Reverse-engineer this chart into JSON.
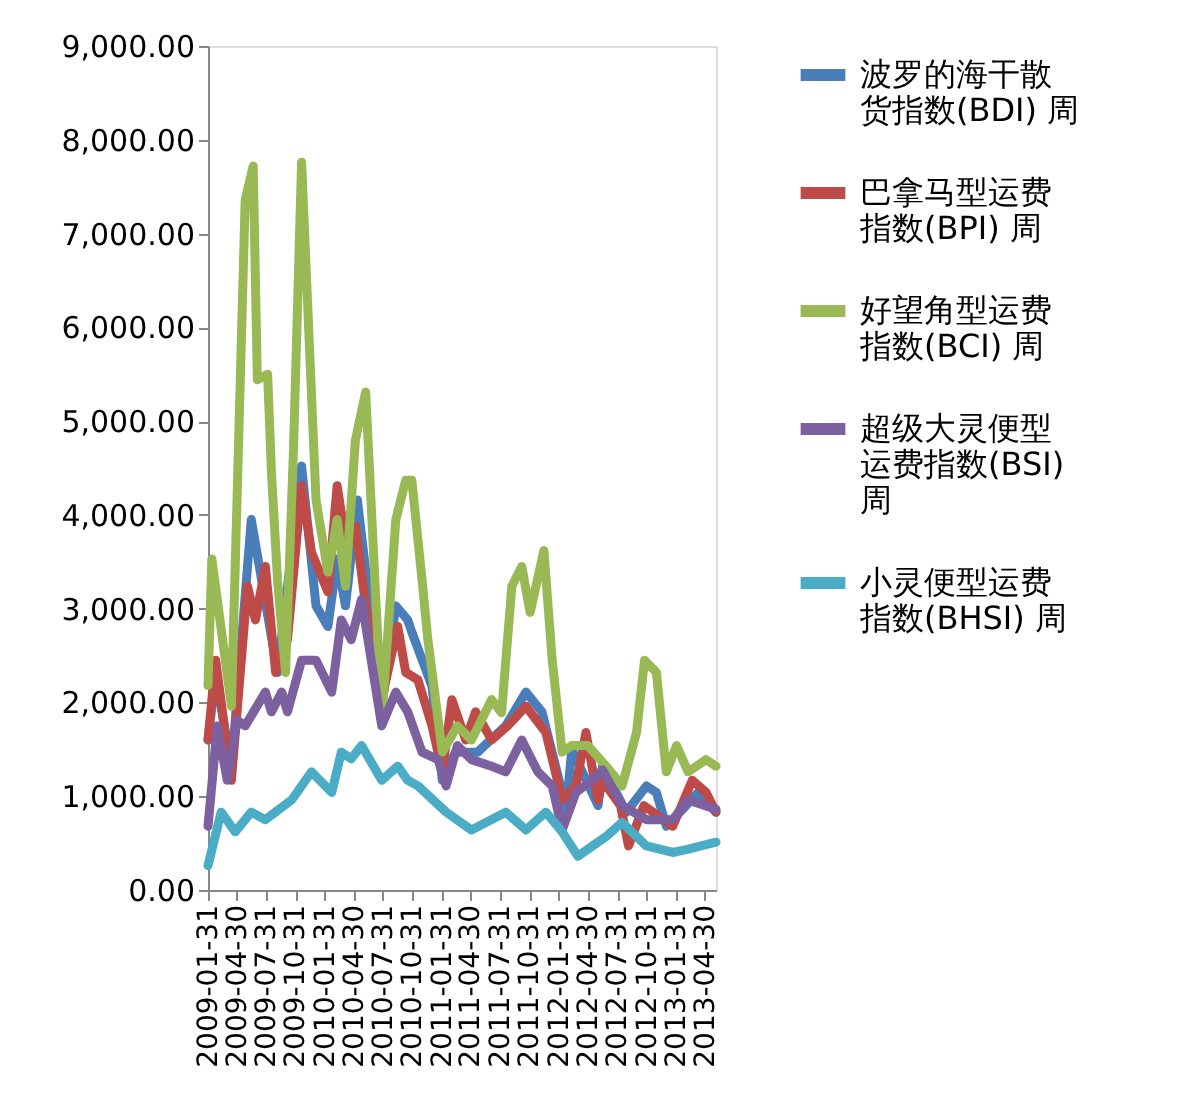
{
  "chart_data": {
    "type": "line",
    "xlim": [
      "2009-01-31",
      "2013-06-04"
    ],
    "xticks": [
      "2009-01-31",
      "2009-04-30",
      "2009-07-31",
      "2009-10-31",
      "2010-01-31",
      "2010-04-30",
      "2010-07-31",
      "2010-10-31",
      "2011-01-31",
      "2011-04-30",
      "2011-07-31",
      "2011-10-31",
      "2012-01-31",
      "2012-04-30",
      "2012-07-31",
      "2012-10-31",
      "2013-01-31",
      "2013-04-30"
    ],
    "ylim": [
      0,
      9000
    ],
    "yticks": [
      {
        "value": 0,
        "label": "0.00"
      },
      {
        "value": 1000,
        "label": "1,000.00"
      },
      {
        "value": 2000,
        "label": "2,000.00"
      },
      {
        "value": 3000,
        "label": "3,000.00"
      },
      {
        "value": 4000,
        "label": "4,000.00"
      },
      {
        "value": 5000,
        "label": "5,000.00"
      },
      {
        "value": 6000,
        "label": "6,000.00"
      },
      {
        "value": 7000,
        "label": "7,000.00"
      },
      {
        "value": 8000,
        "label": "8,000.00"
      },
      {
        "value": 9000,
        "label": "9,000.00"
      }
    ],
    "grid": false,
    "legend": "right",
    "marker": "none",
    "line_style": "solid",
    "series": [
      {
        "name": "波罗的海干散货指数(BDI) 周",
        "color": "#4a7ebb",
        "x": [
          "2009-01-31",
          "2009-02-24",
          "2009-04-14",
          "2009-06-15",
          "2009-09-05",
          "2009-11-19",
          "2010-01-03",
          "2010-02-09",
          "2010-03-10",
          "2010-04-05",
          "2010-05-12",
          "2010-07-27",
          "2010-09-09",
          "2010-10-16",
          "2010-10-29",
          "2010-12-31",
          "2011-02-01",
          "2011-03-14",
          "2011-05-22",
          "2011-08-18",
          "2011-10-20",
          "2011-12-09",
          "2012-02-10",
          "2012-02-22",
          "2012-03-11",
          "2012-06-01",
          "2012-06-15",
          "2012-08-28",
          "2012-10-30",
          "2012-11-30",
          "2012-12-31",
          "2013-03-03",
          "2013-04-09",
          "2013-06-04"
        ],
        "values": [
          1600,
          2300,
          1300,
          3950,
          2320,
          4520,
          3030,
          2810,
          3530,
          3030,
          4160,
          1960,
          3030,
          2880,
          2750,
          2170,
          1170,
          1470,
          1470,
          1750,
          2110,
          1900,
          1040,
          830,
          1500,
          900,
          1320,
          830,
          1110,
          1040,
          680,
          900,
          1040,
          830
        ]
      },
      {
        "name": "巴拿马型运费指数(BPI) 周",
        "color": "#be4b48",
        "x": [
          "2009-01-31",
          "2009-02-24",
          "2009-04-14",
          "2009-06-03",
          "2009-06-28",
          "2009-07-29",
          "2009-08-30",
          "2009-10-06",
          "2009-11-19",
          "2009-12-20",
          "2010-02-09",
          "2010-03-10",
          "2010-04-05",
          "2010-05-06",
          "2010-06-07",
          "2010-07-27",
          "2010-09-15",
          "2010-10-10",
          "2010-11-17",
          "2010-12-31",
          "2011-02-01",
          "2011-03-03",
          "2011-04-15",
          "2011-05-16",
          "2011-07-05",
          "2011-08-24",
          "2011-10-20",
          "2011-12-21",
          "2012-02-10",
          "2012-03-24",
          "2012-04-24",
          "2012-06-01",
          "2012-06-15",
          "2012-08-10",
          "2012-09-04",
          "2012-10-22",
          "2013-01-20",
          "2013-03-22",
          "2013-05-04",
          "2013-06-04"
        ],
        "values": [
          1600,
          2450,
          1170,
          3240,
          2880,
          3450,
          2320,
          2670,
          4310,
          3600,
          3180,
          4310,
          3730,
          3880,
          3030,
          2030,
          2810,
          2320,
          2240,
          1750,
          1260,
          2030,
          1600,
          1900,
          1600,
          1750,
          1960,
          1680,
          960,
          1110,
          1680,
          960,
          1170,
          900,
          470,
          900,
          680,
          1170,
          1040,
          830
        ]
      },
      {
        "name": "好望角型运费指数(BCI) 周",
        "color": "#98b954",
        "x": [
          "2009-01-31",
          "2009-02-12",
          "2009-04-14",
          "2009-05-27",
          "2009-06-21",
          "2009-07-04",
          "2009-08-05",
          "2009-08-17",
          "2009-09-05",
          "2009-09-30",
          "2009-10-25",
          "2009-11-19",
          "2010-01-03",
          "2010-02-09",
          "2010-03-10",
          "2010-04-05",
          "2010-05-06",
          "2010-06-07",
          "2010-07-27",
          "2010-09-09",
          "2010-10-10",
          "2010-10-29",
          "2010-11-30",
          "2010-12-18",
          "2011-02-01",
          "2011-03-20",
          "2011-05-03",
          "2011-07-05",
          "2011-08-05",
          "2011-09-06",
          "2011-10-07",
          "2011-11-02",
          "2011-12-15",
          "2012-01-10",
          "2012-02-10",
          "2012-03-11",
          "2012-04-30",
          "2012-06-26",
          "2012-08-15",
          "2012-09-29",
          "2012-10-24",
          "2012-11-30",
          "2012-12-31",
          "2013-02-01",
          "2013-03-09",
          "2013-05-04",
          "2013-06-04"
        ],
        "values": [
          2180,
          3530,
          1960,
          7360,
          7720,
          5440,
          5500,
          4450,
          3300,
          2320,
          4730,
          7760,
          4160,
          3390,
          3950,
          3240,
          4800,
          5310,
          1810,
          3950,
          4370,
          4370,
          3300,
          2670,
          1470,
          1750,
          1600,
          2030,
          1890,
          3240,
          3450,
          2960,
          3620,
          2450,
          1470,
          1540,
          1540,
          1320,
          1110,
          1680,
          2450,
          2320,
          1260,
          1540,
          1260,
          1390,
          1320
        ]
      },
      {
        "name": "超级大灵便型运费指数(BSI) 周",
        "color": "#7d60a0",
        "x": [
          "2009-01-31",
          "2009-03-01",
          "2009-04-01",
          "2009-05-02",
          "2009-05-27",
          "2009-07-29",
          "2009-08-17",
          "2009-09-18",
          "2009-10-06",
          "2009-11-19",
          "2010-01-03",
          "2010-02-21",
          "2010-03-23",
          "2010-04-23",
          "2010-05-25",
          "2010-07-27",
          "2010-09-09",
          "2010-10-16",
          "2010-11-30",
          "2011-01-19",
          "2011-02-13",
          "2011-03-20",
          "2011-05-03",
          "2011-07-05",
          "2011-08-18",
          "2011-10-07",
          "2011-11-26",
          "2012-01-10",
          "2012-02-10",
          "2012-03-24",
          "2012-05-13",
          "2012-06-15",
          "2012-08-15",
          "2012-10-30",
          "2013-01-20",
          "2013-03-09",
          "2013-06-04"
        ],
        "values": [
          680,
          1750,
          1170,
          1810,
          1750,
          2110,
          1900,
          2110,
          1900,
          2450,
          2450,
          2110,
          2880,
          2670,
          3100,
          1750,
          2110,
          1900,
          1470,
          1390,
          1110,
          1540,
          1390,
          1320,
          1260,
          1600,
          1260,
          1110,
          640,
          1040,
          1170,
          1280,
          900,
          750,
          750,
          960,
          860
        ]
      },
      {
        "name": "小灵便型运费指数(BHSI) 周",
        "color": "#4bacc6",
        "x": [
          "2009-01-31",
          "2009-03-13",
          "2009-04-26",
          "2009-06-15",
          "2009-07-29",
          "2009-10-19",
          "2009-12-20",
          "2010-02-21",
          "2010-03-23",
          "2010-04-23",
          "2010-05-25",
          "2010-07-27",
          "2010-09-15",
          "2010-10-16",
          "2010-11-17",
          "2011-02-13",
          "2011-05-03",
          "2011-08-18",
          "2011-10-20",
          "2011-12-21",
          "2012-02-10",
          "2012-03-30",
          "2012-06-26",
          "2012-08-15",
          "2012-10-30",
          "2013-01-20",
          "2013-03-03",
          "2013-06-04"
        ],
        "values": [
          260,
          830,
          620,
          830,
          750,
          960,
          1260,
          1040,
          1470,
          1400,
          1540,
          1170,
          1320,
          1170,
          1110,
          830,
          640,
          830,
          640,
          830,
          620,
          360,
          570,
          720,
          470,
          400,
          430,
          510
        ]
      }
    ]
  }
}
